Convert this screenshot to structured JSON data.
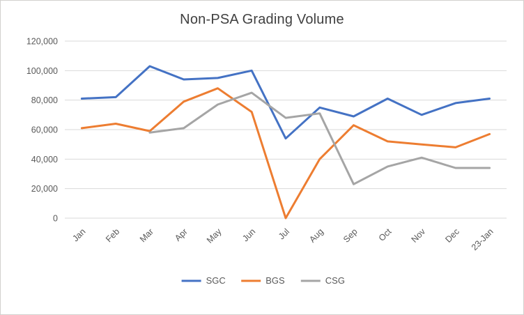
{
  "chart_data": {
    "type": "line",
    "title": "Non-PSA Grading Volume",
    "categories": [
      "Jan",
      "Feb",
      "Mar",
      "Apr",
      "May",
      "Jun",
      "Jul",
      "Aug",
      "Sep",
      "Oct",
      "Nov",
      "Dec",
      "23-Jan"
    ],
    "series": [
      {
        "name": "SGC",
        "color": "#4472C4",
        "values": [
          81000,
          82000,
          103000,
          94000,
          95000,
          100000,
          54000,
          75000,
          69000,
          81000,
          70000,
          78000,
          81000
        ]
      },
      {
        "name": "BGS",
        "color": "#ED7D31",
        "values": [
          61000,
          64000,
          59000,
          79000,
          88000,
          72000,
          0,
          40000,
          63000,
          52000,
          50000,
          48000,
          57000
        ]
      },
      {
        "name": "CSG",
        "color": "#A5A5A5",
        "values": [
          null,
          null,
          58000,
          61000,
          77000,
          85000,
          68000,
          71000,
          23000,
          35000,
          41000,
          34000,
          34000
        ]
      }
    ],
    "ylim": [
      0,
      120000
    ],
    "ytick_step": 20000,
    "grid": true,
    "legend_position": "bottom",
    "colors": {
      "gridline": "#d9d9d9",
      "axis_label": "#595959",
      "title": "#404040",
      "legend_label": "#595959"
    }
  }
}
